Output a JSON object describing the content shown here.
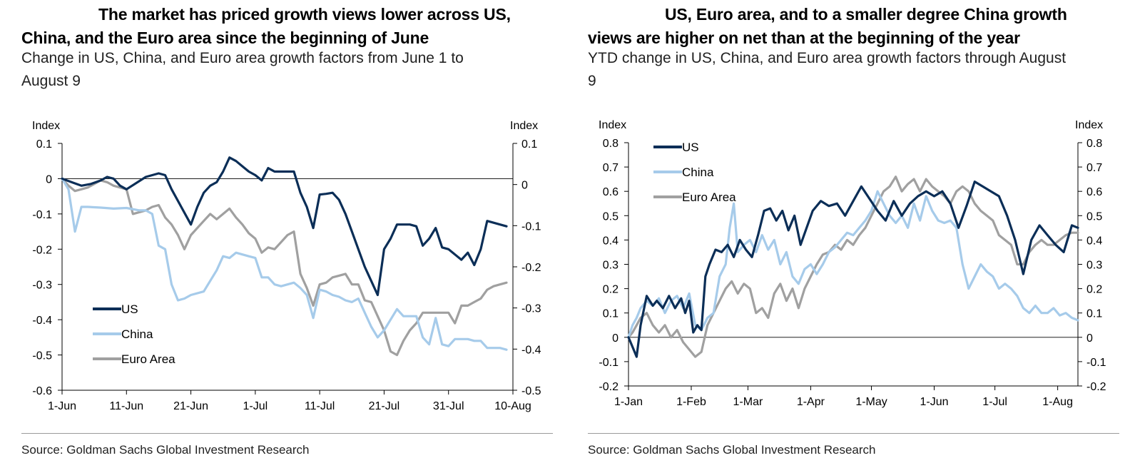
{
  "left": {
    "title_line1": "The market has priced growth views lower across US,",
    "title_line2": "China, and the Euro area since the beginning of June",
    "subtitle_line1": "Change in US, China, and Euro area growth factors from June 1 to",
    "subtitle_line2": "August 9",
    "source": "Source: Goldman Sachs Global Investment Research"
  },
  "right": {
    "title_line1": "US, Euro area, and to a smaller degree China growth",
    "title_line2": "views are higher on net than at the beginning of the year",
    "subtitle_line1": "YTD change in US, China, and Euro area growth factors through August",
    "subtitle_line2": "9",
    "source": "Source: Goldman Sachs Global Investment Research"
  },
  "chart_data": [
    {
      "type": "line",
      "ylabel_left": "Index",
      "ylabel_right": "Index",
      "ylim_left": [
        -0.6,
        0.1
      ],
      "ylim_right": [
        -0.5,
        0.1
      ],
      "yticks_left": [
        "0.1",
        "0",
        "-0.1",
        "-0.2",
        "-0.3",
        "-0.4",
        "-0.5",
        "-0.6"
      ],
      "yticks_right": [
        "0.1",
        "0",
        "-0.1",
        "-0.2",
        "-0.3",
        "-0.4",
        "-0.5"
      ],
      "xticks": [
        "1-Jun",
        "11-Jun",
        "21-Jun",
        "1-Jul",
        "11-Jul",
        "21-Jul",
        "31-Jul",
        "10-Aug"
      ],
      "x_range_days": [
        0,
        70
      ],
      "legend_position": "bottom-left",
      "series": [
        {
          "name": "US",
          "color": "#0b2e57",
          "x": [
            0,
            1.5,
            3,
            4.5,
            6,
            7,
            8,
            9,
            10,
            13,
            14,
            15,
            16,
            17,
            20,
            21,
            22,
            23,
            24,
            25,
            26,
            27,
            28,
            29,
            30,
            31,
            32,
            33,
            34,
            35,
            36,
            37,
            38,
            39,
            40,
            41,
            42,
            43,
            44,
            45,
            46,
            47,
            48,
            49,
            50,
            51,
            52,
            53,
            54,
            55,
            56,
            57,
            58,
            59,
            60,
            61,
            62,
            63,
            64,
            65,
            66,
            67,
            68,
            69
          ],
          "values": [
            0.0,
            -0.01,
            -0.02,
            -0.015,
            -0.005,
            0.005,
            0.0,
            -0.02,
            -0.03,
            0.005,
            0.01,
            0.015,
            0.01,
            -0.03,
            -0.13,
            -0.08,
            -0.04,
            -0.02,
            -0.01,
            0.02,
            0.06,
            0.05,
            0.035,
            0.02,
            0.01,
            -0.005,
            0.03,
            0.02,
            0.02,
            0.02,
            0.02,
            -0.04,
            -0.08,
            -0.14,
            -0.045,
            -0.043,
            -0.04,
            -0.06,
            -0.1,
            -0.15,
            -0.2,
            -0.25,
            -0.29,
            -0.33,
            -0.2,
            -0.17,
            -0.13,
            -0.13,
            -0.13,
            -0.135,
            -0.19,
            -0.17,
            -0.14,
            -0.195,
            -0.2,
            -0.215,
            -0.23,
            -0.21,
            -0.245,
            -0.2,
            -0.12,
            -0.125,
            -0.13,
            -0.135
          ]
        },
        {
          "name": "China",
          "color": "#a6cbea",
          "x": [
            0,
            1,
            2,
            3,
            4,
            6,
            8,
            10,
            12,
            13,
            14,
            15,
            16,
            17,
            18,
            19,
            20,
            22,
            24,
            25,
            26,
            27,
            28,
            29,
            30,
            31,
            32,
            33,
            34,
            35,
            36,
            37,
            38,
            39,
            40,
            41,
            42,
            43,
            44,
            45,
            46,
            47,
            48,
            49,
            50,
            51,
            52,
            53,
            54,
            55,
            56,
            57,
            58,
            59,
            60,
            61,
            62,
            63,
            64,
            65,
            66,
            67,
            68,
            69
          ],
          "values": [
            0.0,
            -0.03,
            -0.15,
            -0.08,
            -0.08,
            -0.082,
            -0.085,
            -0.083,
            -0.09,
            -0.09,
            -0.1,
            -0.19,
            -0.2,
            -0.3,
            -0.345,
            -0.34,
            -0.33,
            -0.32,
            -0.26,
            -0.22,
            -0.225,
            -0.21,
            -0.215,
            -0.22,
            -0.225,
            -0.28,
            -0.28,
            -0.3,
            -0.305,
            -0.3,
            -0.295,
            -0.31,
            -0.33,
            -0.395,
            -0.315,
            -0.32,
            -0.33,
            -0.335,
            -0.345,
            -0.35,
            -0.34,
            -0.38,
            -0.42,
            -0.45,
            -0.43,
            -0.4,
            -0.37,
            -0.39,
            -0.39,
            -0.39,
            -0.45,
            -0.47,
            -0.395,
            -0.47,
            -0.475,
            -0.455,
            -0.455,
            -0.455,
            -0.46,
            -0.46,
            -0.48,
            -0.48,
            -0.48,
            -0.485
          ]
        },
        {
          "name": "Euro Area",
          "color": "#a0a0a0",
          "x": [
            0,
            1,
            2,
            3,
            4,
            5,
            6,
            7,
            8,
            9,
            10,
            11,
            12,
            13,
            14,
            15,
            16,
            17,
            18,
            19,
            20,
            21,
            22,
            23,
            24,
            25,
            26,
            27,
            28,
            29,
            30,
            31,
            32,
            33,
            34,
            35,
            36,
            37,
            38,
            39,
            40,
            41,
            42,
            43,
            44,
            45,
            46,
            47,
            48,
            49,
            50,
            51,
            52,
            53,
            54,
            55,
            56,
            57,
            58,
            59,
            60,
            61,
            62,
            63,
            64,
            65,
            66,
            67,
            68,
            69
          ],
          "values": [
            0.0,
            -0.02,
            -0.035,
            -0.03,
            -0.025,
            -0.015,
            -0.005,
            -0.01,
            -0.02,
            -0.025,
            -0.03,
            -0.1,
            -0.095,
            -0.09,
            -0.08,
            -0.075,
            -0.11,
            -0.13,
            -0.16,
            -0.2,
            -0.16,
            -0.14,
            -0.12,
            -0.1,
            -0.115,
            -0.1,
            -0.085,
            -0.11,
            -0.13,
            -0.155,
            -0.17,
            -0.21,
            -0.195,
            -0.2,
            -0.18,
            -0.16,
            -0.15,
            -0.27,
            -0.31,
            -0.36,
            -0.3,
            -0.295,
            -0.28,
            -0.275,
            -0.27,
            -0.3,
            -0.3,
            -0.345,
            -0.35,
            -0.39,
            -0.43,
            -0.49,
            -0.5,
            -0.46,
            -0.43,
            -0.41,
            -0.38,
            -0.38,
            -0.38,
            -0.38,
            -0.38,
            -0.41,
            -0.36,
            -0.36,
            -0.35,
            -0.34,
            -0.315,
            -0.305,
            -0.3,
            -0.295
          ]
        }
      ]
    },
    {
      "type": "line",
      "ylabel_left": "Index",
      "ylabel_right": "Index",
      "ylim_left": [
        -0.2,
        0.8
      ],
      "ylim_right": [
        -0.2,
        0.8
      ],
      "yticks_left": [
        "0.8",
        "0.7",
        "0.6",
        "0.5",
        "0.4",
        "0.3",
        "0.2",
        "0.1",
        "0",
        "-0.1",
        "-0.2"
      ],
      "yticks_right": [
        "0.8",
        "0.7",
        "0.6",
        "0.5",
        "0.4",
        "0.3",
        "0.2",
        "0.1",
        "0",
        "-0.1",
        "-0.2"
      ],
      "xticks": [
        "1-Jan",
        "1-Feb",
        "1-Mar",
        "1-Apr",
        "1-May",
        "1-Jun",
        "1-Jul",
        "1-Aug"
      ],
      "xtick_days": [
        0,
        31,
        59,
        90,
        120,
        151,
        181,
        212
      ],
      "x_range_days": [
        0,
        222
      ],
      "legend_position": "top-left",
      "series": [
        {
          "name": "US",
          "color": "#0b2e57",
          "x": [
            0,
            2,
            4,
            6,
            9,
            12,
            14,
            17,
            20,
            23,
            26,
            28,
            30,
            32,
            34,
            36,
            38,
            40,
            43,
            46,
            49,
            52,
            55,
            58,
            61,
            64,
            67,
            70,
            73,
            76,
            79,
            82,
            85,
            88,
            91,
            95,
            99,
            103,
            107,
            111,
            115,
            119,
            123,
            127,
            131,
            135,
            139,
            143,
            147,
            151,
            155,
            159,
            163,
            167,
            171,
            175,
            179,
            183,
            187,
            191,
            195,
            199,
            203,
            207,
            211,
            215,
            219,
            222
          ],
          "values": [
            0.0,
            -0.04,
            -0.08,
            0.05,
            0.17,
            0.13,
            0.15,
            0.12,
            0.17,
            0.12,
            0.16,
            0.1,
            0.15,
            0.02,
            0.05,
            0.03,
            0.25,
            0.3,
            0.36,
            0.35,
            0.38,
            0.33,
            0.4,
            0.36,
            0.33,
            0.42,
            0.52,
            0.53,
            0.48,
            0.52,
            0.44,
            0.5,
            0.38,
            0.45,
            0.52,
            0.56,
            0.54,
            0.55,
            0.5,
            0.56,
            0.62,
            0.57,
            0.52,
            0.48,
            0.56,
            0.5,
            0.55,
            0.58,
            0.6,
            0.58,
            0.6,
            0.55,
            0.45,
            0.54,
            0.64,
            0.62,
            0.6,
            0.58,
            0.5,
            0.4,
            0.26,
            0.4,
            0.46,
            0.42,
            0.38,
            0.35,
            0.46,
            0.45
          ]
        },
        {
          "name": "China",
          "color": "#a6cbea",
          "x": [
            0,
            2,
            4,
            6,
            9,
            12,
            15,
            18,
            21,
            24,
            27,
            30,
            33,
            36,
            39,
            42,
            45,
            48,
            50,
            52,
            54,
            57,
            60,
            63,
            66,
            69,
            72,
            75,
            78,
            81,
            84,
            87,
            90,
            93,
            96,
            99,
            102,
            105,
            108,
            111,
            114,
            117,
            120,
            123,
            126,
            129,
            132,
            135,
            138,
            141,
            144,
            147,
            150,
            153,
            156,
            159,
            162,
            165,
            168,
            171,
            174,
            177,
            180,
            183,
            186,
            189,
            192,
            195,
            198,
            201,
            204,
            207,
            210,
            213,
            216,
            219,
            222
          ],
          "values": [
            0.0,
            0.05,
            0.08,
            0.12,
            0.15,
            0.13,
            0.16,
            0.1,
            0.15,
            0.17,
            0.12,
            0.18,
            0.05,
            0.03,
            0.08,
            0.1,
            0.25,
            0.3,
            0.45,
            0.55,
            0.35,
            0.38,
            0.4,
            0.35,
            0.42,
            0.36,
            0.4,
            0.3,
            0.35,
            0.25,
            0.22,
            0.28,
            0.3,
            0.26,
            0.3,
            0.35,
            0.37,
            0.4,
            0.43,
            0.42,
            0.45,
            0.48,
            0.52,
            0.6,
            0.55,
            0.5,
            0.47,
            0.5,
            0.45,
            0.55,
            0.48,
            0.58,
            0.52,
            0.48,
            0.47,
            0.48,
            0.45,
            0.3,
            0.2,
            0.25,
            0.3,
            0.27,
            0.25,
            0.2,
            0.22,
            0.2,
            0.17,
            0.12,
            0.1,
            0.13,
            0.1,
            0.1,
            0.12,
            0.09,
            0.1,
            0.08,
            0.07
          ]
        },
        {
          "name": "Euro Area",
          "color": "#a0a0a0",
          "x": [
            0,
            2,
            4,
            6,
            9,
            12,
            15,
            18,
            21,
            24,
            27,
            30,
            33,
            36,
            39,
            42,
            45,
            48,
            51,
            54,
            57,
            60,
            63,
            66,
            69,
            72,
            75,
            78,
            81,
            84,
            87,
            90,
            93,
            96,
            99,
            102,
            105,
            108,
            111,
            114,
            117,
            120,
            123,
            126,
            129,
            132,
            135,
            138,
            141,
            144,
            147,
            150,
            153,
            156,
            159,
            162,
            165,
            168,
            171,
            174,
            177,
            180,
            183,
            186,
            189,
            192,
            195,
            198,
            201,
            204,
            207,
            210,
            213,
            216,
            219,
            222
          ],
          "values": [
            0.0,
            0.02,
            0.05,
            0.08,
            0.1,
            0.05,
            0.02,
            0.05,
            0.0,
            0.03,
            -0.02,
            -0.05,
            -0.08,
            -0.06,
            0.05,
            0.1,
            0.15,
            0.2,
            0.23,
            0.18,
            0.22,
            0.2,
            0.1,
            0.12,
            0.08,
            0.18,
            0.22,
            0.15,
            0.2,
            0.12,
            0.2,
            0.25,
            0.3,
            0.34,
            0.35,
            0.38,
            0.36,
            0.4,
            0.38,
            0.42,
            0.45,
            0.5,
            0.55,
            0.6,
            0.62,
            0.66,
            0.6,
            0.63,
            0.65,
            0.6,
            0.65,
            0.62,
            0.6,
            0.58,
            0.55,
            0.6,
            0.62,
            0.6,
            0.55,
            0.52,
            0.5,
            0.48,
            0.42,
            0.4,
            0.38,
            0.3,
            0.3,
            0.35,
            0.38,
            0.4,
            0.38,
            0.38,
            0.4,
            0.42,
            0.43,
            0.43
          ]
        }
      ]
    }
  ]
}
